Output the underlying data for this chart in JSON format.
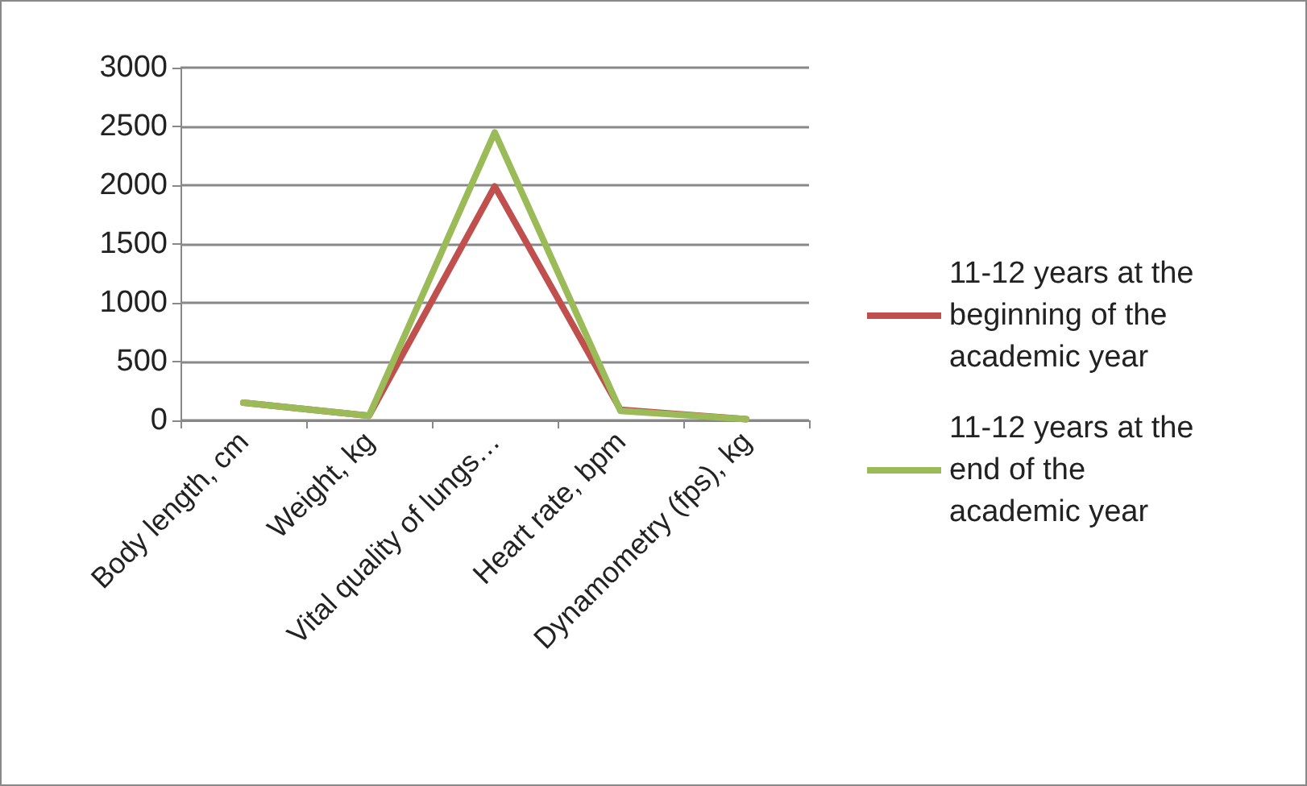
{
  "chart_data": {
    "type": "line",
    "categories": [
      "Body length, cm",
      "Weight, kg",
      "Vital quality of lungs…",
      "Heart rate, bpm",
      "Dynamometry (fps), kg"
    ],
    "series": [
      {
        "name": "11-12 years at the beginning of the academic year",
        "color": "#c0504d",
        "values": [
          150,
          40,
          1990,
          90,
          10
        ]
      },
      {
        "name": "11-12 years at the end of the academic year",
        "color": "#9bbb59",
        "values": [
          150,
          40,
          2450,
          80,
          10
        ]
      }
    ],
    "ylim": [
      0,
      3000
    ],
    "yticks": [
      0,
      500,
      1000,
      1500,
      2000,
      2500,
      3000
    ],
    "grid": "y",
    "legend": "right",
    "marker": "none"
  }
}
